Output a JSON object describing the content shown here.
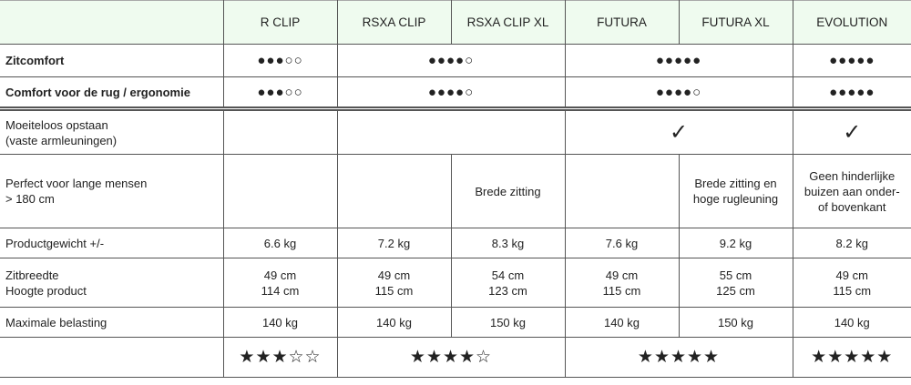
{
  "header": {
    "products": [
      "R CLIP",
      "RSXA CLIP",
      "RSXA CLIP XL",
      "FUTURA",
      "FUTURA XL",
      "EVOLUTION"
    ]
  },
  "rows": [
    {
      "label": "Zitcomfort",
      "bold": true,
      "kind": "dots",
      "height": 36,
      "cells": [
        {
          "text": "●●●○○",
          "span": 1
        },
        {
          "text": "●●●●○",
          "span": 2
        },
        {
          "text": "●●●●●",
          "span": 2
        },
        {
          "text": "●●●●●",
          "span": 1
        }
      ]
    },
    {
      "label": "Comfort voor de rug / ergonomie",
      "bold": true,
      "kind": "dots",
      "height": 35,
      "cells": [
        {
          "text": "●●●○○",
          "span": 1
        },
        {
          "text": "●●●●○",
          "span": 2
        },
        {
          "text": "●●●●○",
          "span": 2
        },
        {
          "text": "●●●●●",
          "span": 1
        }
      ]
    },
    {
      "label": "Moeiteloos opstaan\n(vaste armleuningen)",
      "kind": "check",
      "sep": true,
      "height": 50,
      "cells": [
        {
          "text": "",
          "span": 1
        },
        {
          "text": "",
          "span": 2
        },
        {
          "text": "✓",
          "span": 2
        },
        {
          "text": "✓",
          "span": 1
        }
      ]
    },
    {
      "label": "Perfect voor lange mensen\n> 180 cm",
      "kind": "text",
      "height": 81,
      "cells": [
        {
          "text": "",
          "span": 1
        },
        {
          "text": "",
          "span": 1
        },
        {
          "text": "Brede zitting",
          "span": 1
        },
        {
          "text": "",
          "span": 1
        },
        {
          "text": "Brede zitting en\nhoge rugleuning",
          "span": 1
        },
        {
          "text": "Geen hinderlijke\nbuizen aan onder-\nof bovenkant",
          "span": 1
        }
      ]
    },
    {
      "label": "Productgewicht +/-",
      "kind": "text",
      "height": 33,
      "cells": [
        {
          "text": "6.6 kg",
          "span": 1
        },
        {
          "text": "7.2 kg",
          "span": 1
        },
        {
          "text": "8.3 kg",
          "span": 1
        },
        {
          "text": "7.6 kg",
          "span": 1
        },
        {
          "text": "9.2 kg",
          "span": 1
        },
        {
          "text": "8.2 kg",
          "span": 1
        }
      ]
    },
    {
      "label": "Zitbreedte\nHoogte product",
      "kind": "text",
      "height": 54,
      "cells": [
        {
          "text": "49 cm\n114 cm",
          "span": 1
        },
        {
          "text": "49 cm\n115 cm",
          "span": 1
        },
        {
          "text": "54 cm\n123 cm",
          "span": 1
        },
        {
          "text": "49 cm\n115 cm",
          "span": 1
        },
        {
          "text": "55 cm\n125 cm",
          "span": 1
        },
        {
          "text": "49 cm\n115 cm",
          "span": 1
        }
      ]
    },
    {
      "label": "Maximale belasting",
      "kind": "text",
      "height": 33,
      "cells": [
        {
          "text": "140 kg",
          "span": 1
        },
        {
          "text": "140 kg",
          "span": 1
        },
        {
          "text": "150 kg",
          "span": 1
        },
        {
          "text": "140 kg",
          "span": 1
        },
        {
          "text": "150 kg",
          "span": 1
        },
        {
          "text": "140 kg",
          "span": 1
        }
      ]
    },
    {
      "label": "",
      "kind": "stars",
      "height": 44,
      "cells": [
        {
          "text": "★★★☆☆",
          "span": 1
        },
        {
          "text": "★★★★☆",
          "span": 2
        },
        {
          "text": "★★★★★",
          "span": 2
        },
        {
          "text": "★★★★★",
          "span": 1
        }
      ]
    }
  ]
}
